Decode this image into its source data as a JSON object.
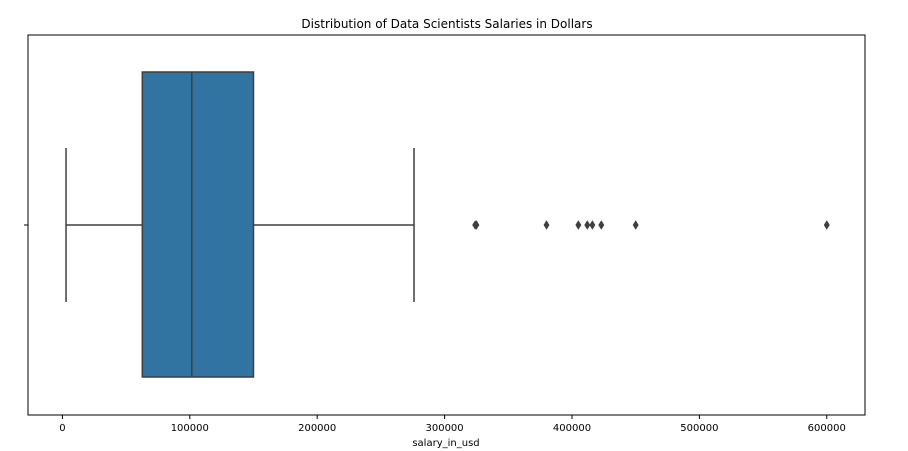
{
  "chart_data": {
    "type": "boxplot",
    "orientation": "horizontal",
    "title": "Distribution of Data Scientists Salaries in Dollars",
    "xlabel": "salary_in_usd",
    "ylabel": "",
    "xlim": [
      -27000,
      630000
    ],
    "xticks": [
      0,
      100000,
      200000,
      300000,
      400000,
      500000,
      600000
    ],
    "xtick_labels": [
      "0",
      "100000",
      "200000",
      "300000",
      "400000",
      "500000",
      "600000"
    ],
    "grid": false,
    "box": {
      "whisker_low": 2859,
      "q1": 62726,
      "median": 101570,
      "q3": 150000,
      "whisker_high": 276000
    },
    "outliers": [
      324000,
      325000,
      380000,
      405000,
      412000,
      416000,
      423000,
      450000,
      600000
    ],
    "colors": {
      "box_fill": "#3274a1",
      "line": "#3f3f3f",
      "frame": "#000000"
    }
  }
}
